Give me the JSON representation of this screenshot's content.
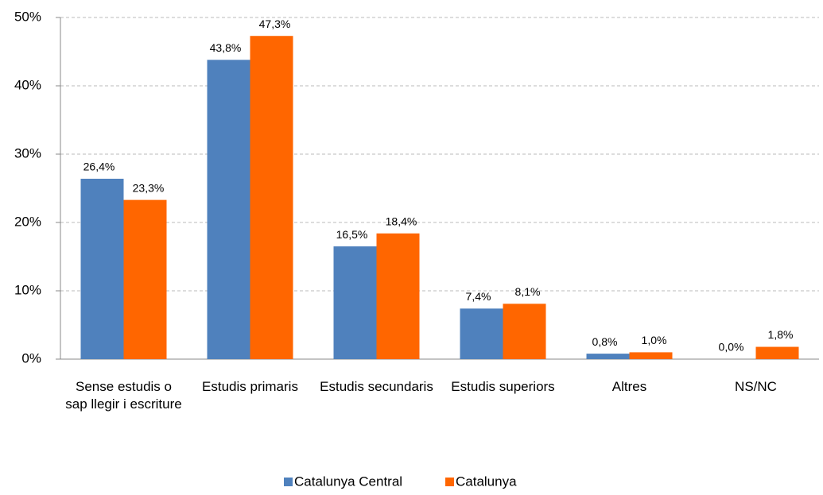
{
  "chart_data": {
    "type": "bar",
    "categories": [
      "Sense estudis o sap llegir i escriture",
      "Estudis primaris",
      "Estudis secundaris",
      "Estudis superiors",
      "Altres",
      "NS/NC"
    ],
    "series": [
      {
        "name": "Catalunya Central",
        "color": "#4f81bd",
        "values": [
          26.4,
          43.8,
          16.5,
          7.4,
          0.8,
          0.0
        ],
        "value_labels": [
          "26,4%",
          "43,8%",
          "16,5%",
          "7,4%",
          "0,8%",
          "0,0%"
        ]
      },
      {
        "name": "Catalunya",
        "color": "#ff6600",
        "values": [
          23.3,
          47.3,
          18.4,
          8.1,
          1.0,
          1.8
        ],
        "value_labels": [
          "23,3%",
          "47,3%",
          "18,4%",
          "8,1%",
          "1,0%",
          "1,8%"
        ]
      }
    ],
    "ylim": [
      0,
      50
    ],
    "yticks": [
      {
        "value": 0,
        "label": "0%"
      },
      {
        "value": 10,
        "label": "10%"
      },
      {
        "value": 20,
        "label": "20%"
      },
      {
        "value": 30,
        "label": "30%"
      },
      {
        "value": 40,
        "label": "40%"
      },
      {
        "value": 50,
        "label": "50%"
      }
    ],
    "grid": true,
    "legend": "bottom"
  }
}
